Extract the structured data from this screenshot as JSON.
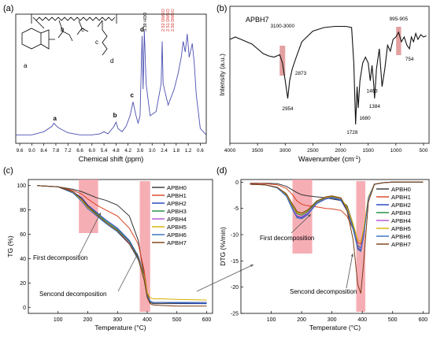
{
  "panels": {
    "a": {
      "label": "(a)",
      "structure_labels": [
        "a",
        "b",
        "c",
        "c",
        "d"
      ],
      "solvent_peaks": [
        "3.39 HDO",
        "2.52 DMSO",
        "2.51 DMSO",
        "2.50 DMSO"
      ],
      "colors": {
        "spectrum": "#4b4fb0",
        "solvent_text": "#d9322a"
      }
    },
    "b": {
      "label": "(b)",
      "title": "APBH7",
      "highlight_color": "#d98080"
    },
    "c": {
      "label": "(c)"
    },
    "d": {
      "label": "(d)"
    }
  },
  "chart_data": [
    {
      "panel": "a",
      "type": "line",
      "title": "",
      "xlabel": "Chemical shift (ppm)",
      "ylabel": "",
      "xlim": [
        9.8,
        0.3
      ],
      "x_reversed": true,
      "x_ticks": [
        "9.6",
        "9.0",
        "8.4",
        "7.8",
        "7.2",
        "6.6",
        "6.0",
        "5.4",
        "4.8",
        "4.2",
        "3.6",
        "3.0",
        "2.4",
        "1.8",
        "1.2",
        "0.6"
      ],
      "x": [
        9.8,
        9.0,
        8.4,
        8.0,
        7.9,
        7.8,
        7.7,
        7.5,
        7.2,
        6.6,
        6.0,
        5.6,
        5.4,
        5.2,
        4.9,
        4.8,
        4.7,
        4.5,
        4.3,
        4.1,
        3.95,
        3.8,
        3.7,
        3.6,
        3.5,
        3.45,
        3.39,
        3.3,
        3.1,
        2.8,
        2.55,
        2.5,
        2.45,
        2.2,
        1.9,
        1.7,
        1.55,
        1.45,
        1.35,
        1.25,
        1.15,
        1.0,
        0.9,
        0.85,
        0.8,
        0.6,
        0.3
      ],
      "values": [
        0.02,
        0.02,
        0.05,
        0.1,
        0.13,
        0.11,
        0.09,
        0.07,
        0.04,
        0.02,
        0.02,
        0.03,
        0.05,
        0.03,
        0.1,
        0.14,
        0.08,
        0.05,
        0.1,
        0.2,
        0.33,
        0.2,
        0.13,
        0.2,
        0.95,
        0.45,
        1.0,
        0.5,
        0.2,
        0.24,
        0.5,
        0.9,
        0.5,
        0.3,
        0.45,
        0.6,
        0.75,
        0.9,
        0.8,
        0.97,
        0.75,
        0.88,
        0.7,
        0.55,
        0.4,
        0.08,
        0.02
      ],
      "annotations": [
        {
          "text": "a",
          "x": 7.85
        },
        {
          "text": "b",
          "x": 4.85
        },
        {
          "text": "c",
          "x": 4.0
        },
        {
          "text": "d",
          "x": 3.5
        }
      ]
    },
    {
      "panel": "b",
      "type": "line",
      "title": "APBH7",
      "xlabel": "Wavenumber (cm",
      "xlabel_sup": "-1",
      "xlabel_close": ")",
      "ylabel": "Intensity (a.u.)",
      "xlim": [
        4000,
        400
      ],
      "x_reversed": true,
      "x_ticks": [
        "4000",
        "3500",
        "3000",
        "2500",
        "2000",
        "1500",
        "1000",
        "500"
      ],
      "x": [
        4000,
        3900,
        3800,
        3700,
        3600,
        3500,
        3400,
        3300,
        3200,
        3100,
        3050,
        3000,
        2954,
        2920,
        2873,
        2800,
        2700,
        2500,
        2300,
        2100,
        1900,
        1800,
        1760,
        1728,
        1700,
        1680,
        1650,
        1600,
        1550,
        1500,
        1463,
        1430,
        1400,
        1384,
        1350,
        1300,
        1250,
        1200,
        1150,
        1100,
        1050,
        1000,
        950,
        900,
        850,
        800,
        754,
        720,
        680,
        640,
        600,
        550,
        500,
        450
      ],
      "values": [
        0.8,
        0.82,
        0.8,
        0.78,
        0.76,
        0.72,
        0.68,
        0.66,
        0.65,
        0.67,
        0.6,
        0.45,
        0.3,
        0.45,
        0.55,
        0.65,
        0.78,
        0.87,
        0.9,
        0.91,
        0.91,
        0.9,
        0.6,
        0.08,
        0.4,
        0.22,
        0.45,
        0.6,
        0.65,
        0.6,
        0.45,
        0.58,
        0.42,
        0.3,
        0.55,
        0.72,
        0.4,
        0.55,
        0.75,
        0.7,
        0.8,
        0.82,
        0.86,
        0.78,
        0.82,
        0.75,
        0.72,
        0.82,
        0.78,
        0.85,
        0.8,
        0.84,
        0.82,
        0.83
      ],
      "annotations": [
        "3100-3000",
        "2954",
        "2873",
        "1728",
        "1680",
        "1463",
        "1384",
        "995-905",
        "754"
      ],
      "highlight_ranges": [
        [
          3100,
          3000
        ],
        [
          995,
          905
        ]
      ]
    },
    {
      "panel": "c",
      "type": "line",
      "title": "",
      "xlabel": "Temperature (",
      "xlabel_deg": "°C)",
      "ylabel": "TG (%)",
      "xlim": [
        0,
        620
      ],
      "ylim": [
        -5,
        105
      ],
      "x_ticks": [
        "100",
        "200",
        "300",
        "400",
        "500",
        "600"
      ],
      "y_ticks": [
        "0",
        "20",
        "40",
        "60",
        "80",
        "100"
      ],
      "grid": false,
      "legend_position": "top-right",
      "x": [
        30,
        100,
        150,
        180,
        200,
        230,
        260,
        300,
        340,
        370,
        390,
        400,
        410,
        420,
        450,
        500,
        600
      ],
      "series": [
        {
          "name": "APBH0",
          "color": "#333333",
          "values": [
            100,
            99,
            97,
            95,
            93,
            90,
            88,
            84,
            75,
            55,
            25,
            10,
            4,
            3,
            3,
            3,
            3
          ]
        },
        {
          "name": "APBH1",
          "color": "#d9411e",
          "values": [
            100,
            99,
            96,
            93,
            89,
            84,
            80,
            75,
            65,
            52,
            30,
            12,
            5,
            4,
            4,
            4,
            4
          ]
        },
        {
          "name": "APBH2",
          "color": "#1f3fbf",
          "values": [
            100,
            99,
            95,
            90,
            84,
            78,
            72,
            65,
            55,
            42,
            25,
            10,
            5,
            4,
            4,
            3.5,
            3
          ]
        },
        {
          "name": "APBH3",
          "color": "#1a8a3a",
          "values": [
            100,
            99,
            95,
            89,
            83,
            77,
            71,
            64,
            54,
            41,
            24,
            10,
            5,
            4,
            4,
            4,
            4
          ]
        },
        {
          "name": "APBH4",
          "color": "#b14fcf",
          "values": [
            100,
            99,
            94,
            88,
            82,
            76,
            70,
            63,
            53,
            40,
            23,
            9,
            5,
            4,
            4,
            4,
            4
          ]
        },
        {
          "name": "APBH5",
          "color": "#d4b000",
          "values": [
            100,
            99,
            94,
            88,
            82,
            76,
            70,
            62,
            52,
            40,
            25,
            12,
            8,
            7,
            7,
            6.5,
            6
          ]
        },
        {
          "name": "APBH6",
          "color": "#2f6fc0",
          "values": [
            100,
            99,
            94,
            87,
            81,
            75,
            69,
            62,
            52,
            39,
            23,
            9,
            5,
            4,
            4,
            4,
            4
          ]
        },
        {
          "name": "APBH7",
          "color": "#7a3d12",
          "values": [
            100,
            99,
            95,
            89,
            83,
            76,
            70,
            63,
            52,
            40,
            22,
            8,
            3,
            2,
            1.5,
            1,
            1
          ]
        }
      ],
      "annotations": [
        "First decomposition",
        "Sencond decomposition"
      ],
      "highlight_ranges": [
        [
          170,
          235
        ],
        [
          375,
          410
        ]
      ]
    },
    {
      "panel": "d",
      "type": "line",
      "title": "",
      "xlabel": "Temperature (",
      "xlabel_deg": "°C)",
      "ylabel": "DTG (%/min)",
      "xlim": [
        0,
        620
      ],
      "ylim": [
        -25,
        0.5
      ],
      "x_ticks": [
        "100",
        "200",
        "300",
        "400",
        "500",
        "600"
      ],
      "y_ticks": [
        "0",
        "-5",
        "-10",
        "-15",
        "-20",
        "-25"
      ],
      "grid": false,
      "legend_position": "right",
      "x": [
        30,
        80,
        120,
        150,
        170,
        185,
        200,
        220,
        250,
        280,
        300,
        330,
        350,
        370,
        385,
        395,
        405,
        420,
        440,
        470,
        500,
        600
      ],
      "series": [
        {
          "name": "APBH0",
          "color": "#333333",
          "values": [
            -0.2,
            -0.2,
            -0.3,
            -0.8,
            -1.5,
            -2.0,
            -2.4,
            -2.6,
            -2.8,
            -3.0,
            -3.2,
            -3.5,
            -4.5,
            -8.0,
            -12.5,
            -13.0,
            -10.0,
            -3.0,
            -0.4,
            -0.1,
            0,
            0
          ]
        },
        {
          "name": "APBH1",
          "color": "#d9411e",
          "values": [
            -0.3,
            -0.3,
            -0.5,
            -1.2,
            -2.4,
            -3.6,
            -4.2,
            -4.5,
            -4.7,
            -5.0,
            -5.1,
            -5.4,
            -6.5,
            -9.0,
            -11.5,
            -11.8,
            -9.0,
            -3.0,
            -0.4,
            -0.1,
            0,
            0
          ]
        },
        {
          "name": "APBH2",
          "color": "#1f3fbf",
          "values": [
            -0.4,
            -0.5,
            -1.0,
            -2.5,
            -5.0,
            -6.6,
            -6.8,
            -6.0,
            -4.0,
            -3.2,
            -3.0,
            -3.5,
            -5.5,
            -9.0,
            -12.5,
            -13.0,
            -10.0,
            -3.0,
            -0.4,
            -0.1,
            0,
            0
          ]
        },
        {
          "name": "APBH3",
          "color": "#1a8a3a",
          "values": [
            -0.4,
            -0.5,
            -1.0,
            -2.4,
            -4.6,
            -6.0,
            -6.3,
            -5.6,
            -3.8,
            -3.0,
            -2.8,
            -3.2,
            -5.0,
            -8.5,
            -12.0,
            -12.5,
            -9.5,
            -3.0,
            -0.4,
            -0.1,
            0,
            0
          ]
        },
        {
          "name": "APBH4",
          "color": "#b14fcf",
          "values": [
            -0.4,
            -0.5,
            -1.1,
            -2.6,
            -5.0,
            -6.4,
            -6.6,
            -5.9,
            -4.0,
            -3.1,
            -2.9,
            -3.3,
            -5.2,
            -8.8,
            -12.2,
            -12.6,
            -9.6,
            -3.0,
            -0.4,
            -0.1,
            0,
            0
          ]
        },
        {
          "name": "APBH5",
          "color": "#d4b000",
          "values": [
            -0.4,
            -0.5,
            -1.0,
            -2.3,
            -4.4,
            -5.8,
            -6.0,
            -5.4,
            -3.6,
            -2.9,
            -2.7,
            -3.1,
            -4.8,
            -8.0,
            -11.0,
            -11.4,
            -8.8,
            -2.8,
            -0.4,
            -0.1,
            0,
            0
          ]
        },
        {
          "name": "APBH6",
          "color": "#2f6fc0",
          "values": [
            -0.4,
            -0.5,
            -1.1,
            -2.7,
            -5.2,
            -6.8,
            -7.0,
            -6.2,
            -4.1,
            -3.2,
            -3.0,
            -3.4,
            -5.3,
            -9.0,
            -12.8,
            -13.2,
            -10.2,
            -3.1,
            -0.4,
            -0.1,
            0,
            0
          ]
        },
        {
          "name": "APBH7",
          "color": "#7a3d12",
          "values": [
            -0.4,
            -0.5,
            -1.0,
            -2.2,
            -4.2,
            -5.6,
            -5.9,
            -5.3,
            -3.6,
            -2.8,
            -2.6,
            -3.0,
            -5.5,
            -11.0,
            -19.5,
            -21.2,
            -15.0,
            -3.8,
            -0.4,
            -0.1,
            0,
            0
          ]
        }
      ],
      "annotations": [
        "First decomposition",
        "Sencond decomposition"
      ],
      "highlight_ranges": [
        [
          170,
          235
        ],
        [
          380,
          410
        ]
      ]
    }
  ]
}
